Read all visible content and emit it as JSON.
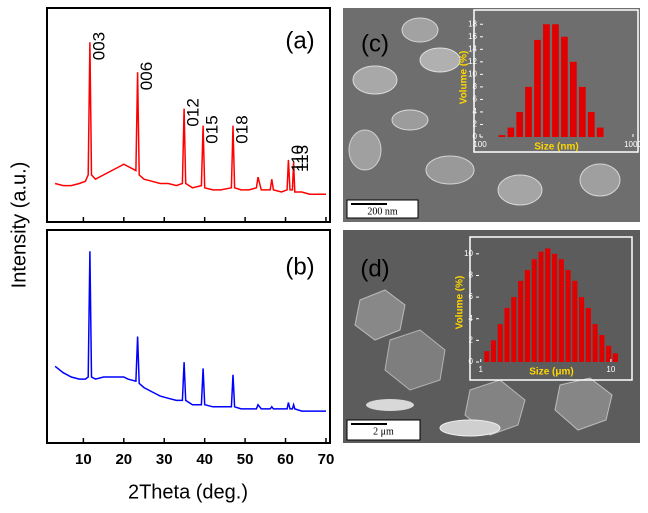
{
  "chart_data": [
    {
      "type": "line",
      "panel_label": "(a)",
      "ylabel": "Intensity (a.u.)",
      "xlim": [
        1,
        71
      ],
      "ylim": [
        0,
        100
      ],
      "x": [
        3,
        5,
        7,
        9,
        10.5,
        11.2,
        11.6,
        12,
        13,
        15,
        17,
        19,
        20,
        21,
        23,
        23.4,
        23.8,
        25,
        27,
        29,
        31,
        33,
        34.5,
        34.9,
        35.3,
        37,
        39.2,
        39.6,
        40,
        42,
        44,
        46.6,
        47,
        47.4,
        49,
        51,
        52.8,
        53.2,
        54,
        56.2,
        56.6,
        57,
        59,
        60.4,
        60.7,
        61.1,
        61.7,
        62,
        62.3,
        64,
        66,
        68,
        70
      ],
      "series": [
        {
          "color": "#ff0000",
          "values": [
            18,
            17,
            17,
            18,
            19,
            22,
            84,
            22,
            20,
            22,
            24,
            26,
            27,
            26,
            24,
            70,
            22,
            20,
            19,
            18,
            18,
            17,
            18,
            53,
            18,
            16,
            17,
            45,
            16,
            15,
            15,
            16,
            45,
            16,
            15,
            15,
            16,
            21,
            15,
            15,
            20,
            15,
            14,
            15,
            29,
            15,
            15,
            28,
            14,
            14,
            13,
            13,
            13
          ]
        }
      ],
      "annotations": [
        {
          "text": "003",
          "x": 11.6
        },
        {
          "text": "006",
          "x": 23.4
        },
        {
          "text": "012",
          "x": 34.9
        },
        {
          "text": "015",
          "x": 39.6
        },
        {
          "text": "018",
          "x": 47
        },
        {
          "text": "110",
          "x": 60.7
        },
        {
          "text": "113",
          "x": 62
        }
      ]
    },
    {
      "type": "line",
      "panel_label": "(b)",
      "xlabel": "2Theta (deg.)",
      "xlim": [
        1,
        71
      ],
      "ylim": [
        0,
        100
      ],
      "xticks": [
        10,
        20,
        30,
        40,
        50,
        60,
        70
      ],
      "x": [
        3,
        5,
        7,
        9,
        10.5,
        11.2,
        11.6,
        12,
        13,
        15,
        17,
        19,
        20,
        21,
        23,
        23.4,
        23.8,
        25,
        27,
        29,
        31,
        33,
        34.5,
        34.9,
        35.3,
        37,
        39.2,
        39.6,
        40,
        42,
        44,
        46.6,
        47,
        47.4,
        49,
        51,
        52.8,
        53.2,
        54,
        56.2,
        56.6,
        57,
        59,
        60.4,
        60.7,
        61.1,
        61.7,
        62,
        62.3,
        64,
        66,
        68,
        70
      ],
      "series": [
        {
          "color": "#0000ff",
          "values": [
            36,
            33,
            31,
            30,
            30,
            31,
            90,
            31,
            30,
            31,
            31,
            31,
            31,
            30,
            29,
            50,
            28,
            26,
            24,
            22,
            21,
            20,
            20,
            38,
            20,
            18,
            18,
            35,
            18,
            17,
            17,
            17,
            32,
            17,
            16,
            16,
            16,
            18,
            16,
            16,
            17,
            16,
            16,
            16,
            19,
            16,
            16,
            18,
            16,
            15,
            15,
            15,
            15
          ]
        }
      ]
    },
    {
      "type": "histogram",
      "panel_label": "(c)",
      "scale_bar": "200 nm",
      "xlabel": "Size (nm)",
      "ylabel": "Volume (%)",
      "log_x": true,
      "color": "#e00000",
      "xlim": [
        100,
        1000
      ],
      "xticks": [
        100,
        1000
      ],
      "ylim": [
        0,
        19
      ],
      "yticks": [
        0,
        2,
        4,
        6,
        8,
        10,
        12,
        14,
        16,
        18
      ],
      "bins": [
        130,
        149,
        170,
        194,
        222,
        254,
        291,
        333,
        381,
        436,
        499,
        571,
        653
      ],
      "values": [
        0.3,
        1.5,
        4,
        8,
        15.5,
        18,
        18,
        16,
        12,
        8,
        4,
        1.5
      ]
    },
    {
      "type": "histogram",
      "panel_label": "(d)",
      "scale_bar": "2 μm",
      "xlabel": "Size (μm)",
      "ylabel": "Volume (%)",
      "log_x": true,
      "color": "#e00000",
      "xlim": [
        0.92,
        13.3
      ],
      "xticks": [
        1,
        10
      ],
      "ylim": [
        0,
        11
      ],
      "yticks": [
        0,
        2,
        4,
        6,
        8,
        10
      ],
      "bins": [
        1.05,
        1.18,
        1.33,
        1.5,
        1.69,
        1.91,
        2.15,
        2.43,
        2.74,
        3.08,
        3.48,
        3.92,
        4.42,
        4.98,
        5.61,
        6.32,
        7.13,
        8.03,
        9.05,
        10.2,
        11.5
      ],
      "values": [
        1,
        2,
        3.5,
        5,
        6,
        7.5,
        8.5,
        9.5,
        10.2,
        10.5,
        10,
        9.5,
        8.5,
        7.5,
        6,
        5,
        3.5,
        2.5,
        1.5,
        0.8
      ]
    }
  ]
}
